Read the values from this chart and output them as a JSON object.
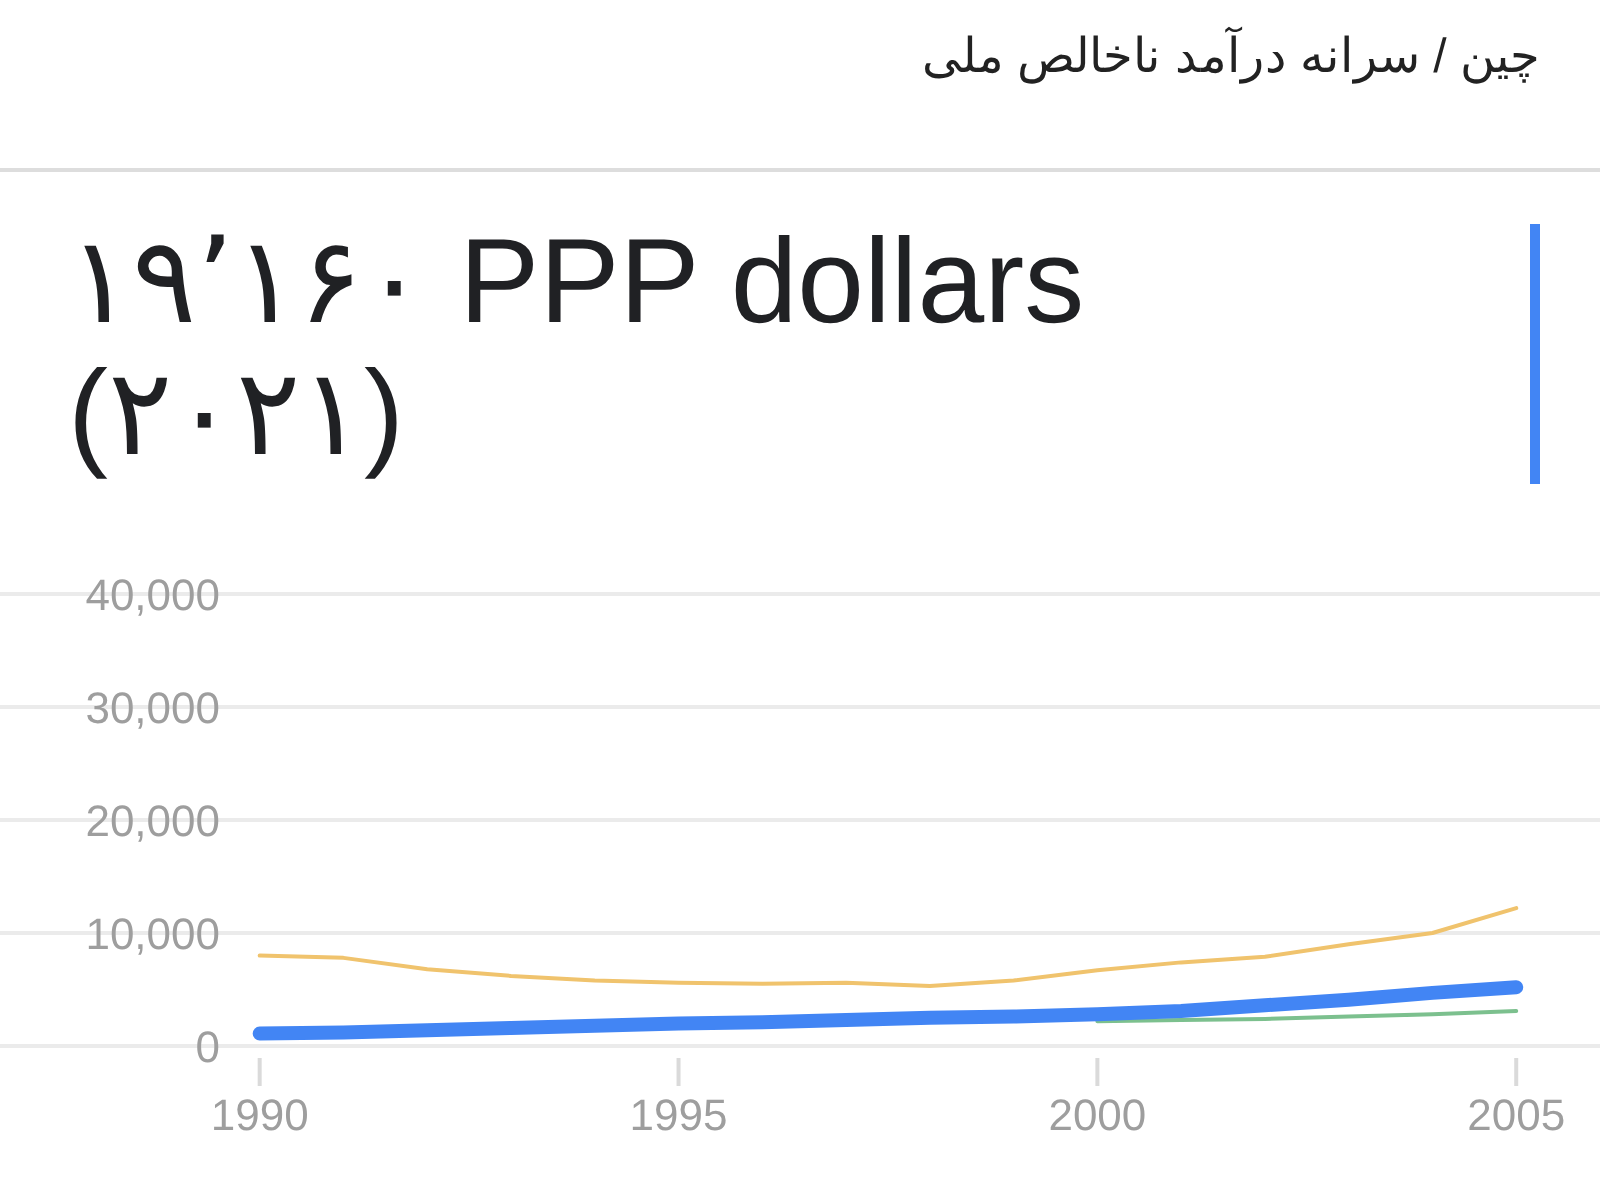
{
  "chart_data": {
    "type": "line",
    "title": "چین / سرانه درآمد ناخالص ملی",
    "subtitle": "۱۹٬۱۶۰ PPP dollars (۲۰۲۱)",
    "x": [
      1990,
      1991,
      1992,
      1993,
      1994,
      1995,
      1996,
      1997,
      1998,
      1999,
      2000,
      2001,
      2002,
      2003,
      2004,
      2005
    ],
    "series": [
      {
        "color": "#f0c36d",
        "values": [
          8000,
          7800,
          6800,
          6200,
          5800,
          5600,
          5500,
          5600,
          5300,
          5800,
          6700,
          7400,
          7900,
          9000,
          10000,
          12200
        ]
      },
      {
        "color": "#7cc08e",
        "values": [
          null,
          null,
          null,
          null,
          null,
          null,
          null,
          null,
          null,
          null,
          2200,
          2300,
          2400,
          2600,
          2800,
          3100
        ]
      },
      {
        "color": "#4285f4",
        "values": [
          1100,
          1200,
          1400,
          1600,
          1800,
          2000,
          2100,
          2300,
          2500,
          2600,
          2800,
          3100,
          3600,
          4100,
          4700,
          5200
        ]
      }
    ],
    "xlim": [
      1986.9,
      2006
    ],
    "ylim": [
      0,
      40000
    ],
    "xticks": [
      1990,
      1995,
      2000,
      2005
    ],
    "yticks": [
      {
        "value": 0,
        "label": "0"
      },
      {
        "value": 10000,
        "label": "10,000"
      },
      {
        "value": 20000,
        "label": "20,000"
      },
      {
        "value": 30000,
        "label": "30,000"
      },
      {
        "value": 40000,
        "label": "40,000"
      }
    ],
    "grid": "y"
  }
}
